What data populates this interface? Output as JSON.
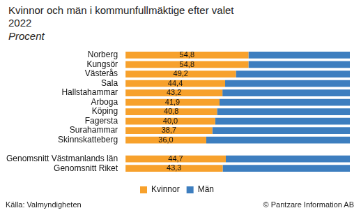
{
  "chart_data": {
    "type": "bar",
    "orientation": "horizontal",
    "stacked": true,
    "title": "Kvinnor och män i kommunfullmäktige efter valet 2022",
    "subtitle": "Procent",
    "source": "Källa: Valmyndigheten",
    "copyright": "© Pantzare Information AB",
    "categories": [
      "Norberg",
      "Kungsör",
      "Västerås",
      "Sala",
      "Hallstahammar",
      "Arboga",
      "Köping",
      "Fagersta",
      "Surahammar",
      "Skinnskatteberg",
      null,
      "Genomsnitt Västmanlands län",
      "Genomsnitt Riket"
    ],
    "series": [
      {
        "name": "Kvinnor",
        "color": "#f7a12c",
        "data_labels": true,
        "values": [
          54.8,
          54.8,
          49.2,
          44.4,
          43.2,
          41.9,
          40.8,
          40.0,
          38.7,
          36.0,
          null,
          44.7,
          43.3
        ],
        "value_labels": [
          "54,8",
          "54,8",
          "49,2",
          "44,4",
          "43,2",
          "41,9",
          "40,8",
          "40,0",
          "38,7",
          "36,0",
          null,
          "44,7",
          "43,3"
        ]
      },
      {
        "name": "Män",
        "color": "#3d7ebf",
        "values": [
          45.2,
          45.2,
          50.8,
          55.6,
          56.8,
          58.1,
          59.2,
          60.0,
          61.3,
          64.0,
          null,
          55.3,
          56.7
        ]
      }
    ],
    "xlim": [
      0,
      100
    ],
    "grid": false,
    "legend": "bottom",
    "tick_labels": "y"
  }
}
